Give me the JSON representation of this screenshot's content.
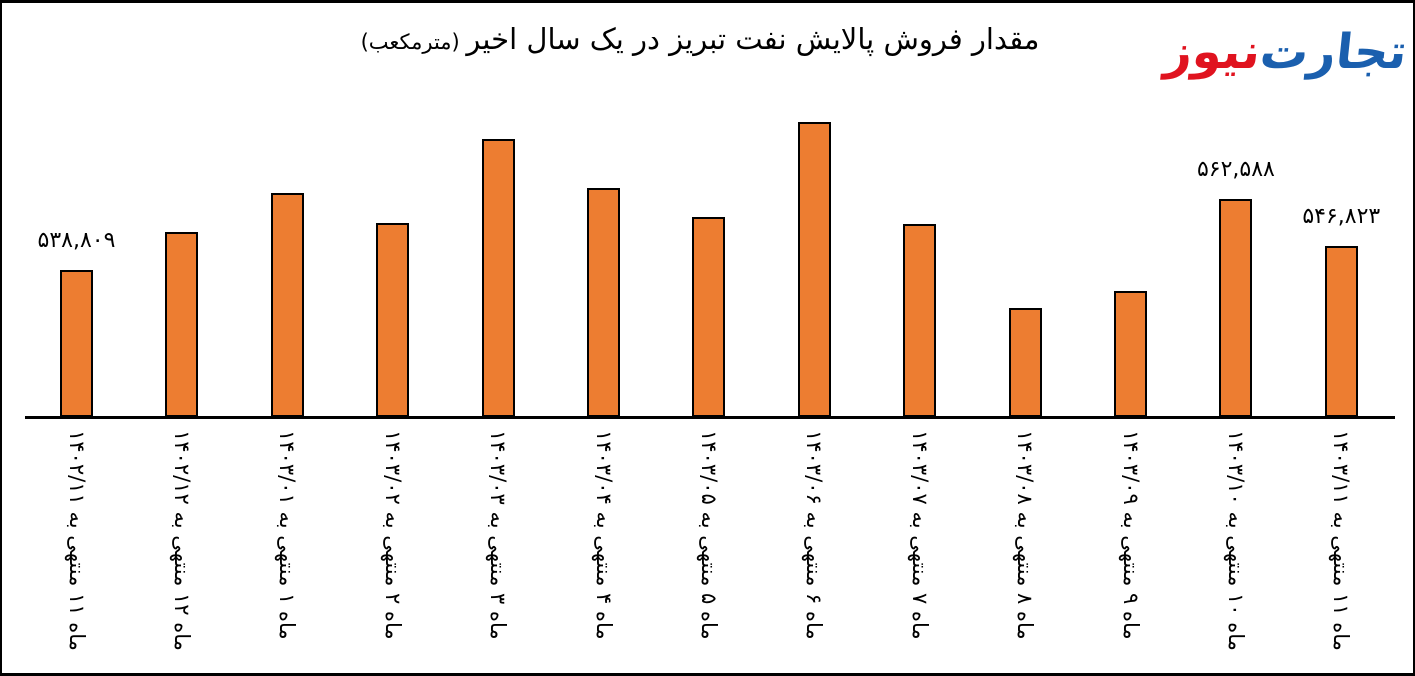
{
  "page": {
    "background": "#ffffff",
    "border_color": "#000000"
  },
  "logo": {
    "word1": "تجارت",
    "word1_color": "#1a5fae",
    "word2": "نیوز",
    "word2_color": "#e0131f",
    "separator": "‌"
  },
  "title": {
    "text": "مقدار فروش پالایش نفت تبریز در یک سال اخیر",
    "unit_suffix": " (مترمکعب)"
  },
  "chart_data": {
    "type": "bar",
    "title": "مقدار فروش پالایش نفت تبریز در یک سال اخیر (مترمکعب)",
    "categories": [
      "ماه ۱۱ منتهی به ۱۴۰۲/۱۱",
      "ماه ۱۲ منتهی به ۱۴۰۲/۱۲",
      "ماه ۱ منتهی به ۱۴۰۳/۰۱",
      "ماه ۲ منتهی به ۱۴۰۳/۰۲",
      "ماه ۳ منتهی به ۱۴۰۳/۰۳",
      "ماه ۴ منتهی به ۱۴۰۳/۰۴",
      "ماه ۵ منتهی به ۱۴۰۳/۰۵",
      "ماه ۶ منتهی به ۱۴۰۳/۰۶",
      "ماه ۷ منتهی به ۱۴۰۳/۰۷",
      "ماه ۸ منتهی به ۱۴۰۳/۰۸",
      "ماه ۹ منتهی به ۱۴۰۳/۰۹",
      "ماه ۱۰ منتهی به ۱۴۰۳/۱۰",
      "ماه ۱۱ منتهی به ۱۴۰۳/۱۱"
    ],
    "values": [
      538809,
      551554,
      564635,
      554573,
      582746,
      566312,
      556585,
      588448,
      554237,
      526064,
      531765,
      562588,
      546823
    ],
    "data_labels": [
      {
        "index": 0,
        "text": "۵۳۸,۸۰۹"
      },
      {
        "index": 11,
        "text": "۵۶۲,۵۸۸"
      },
      {
        "index": 12,
        "text": "۵۴۶,۸۲۳"
      }
    ],
    "bar_color": "#ED7D31",
    "bar_border_color": "#000000",
    "axis_color": "#000000",
    "ylabel": "",
    "xlabel": "",
    "ylim": [
      489500,
      590000
    ],
    "grid": false,
    "legend": false
  }
}
